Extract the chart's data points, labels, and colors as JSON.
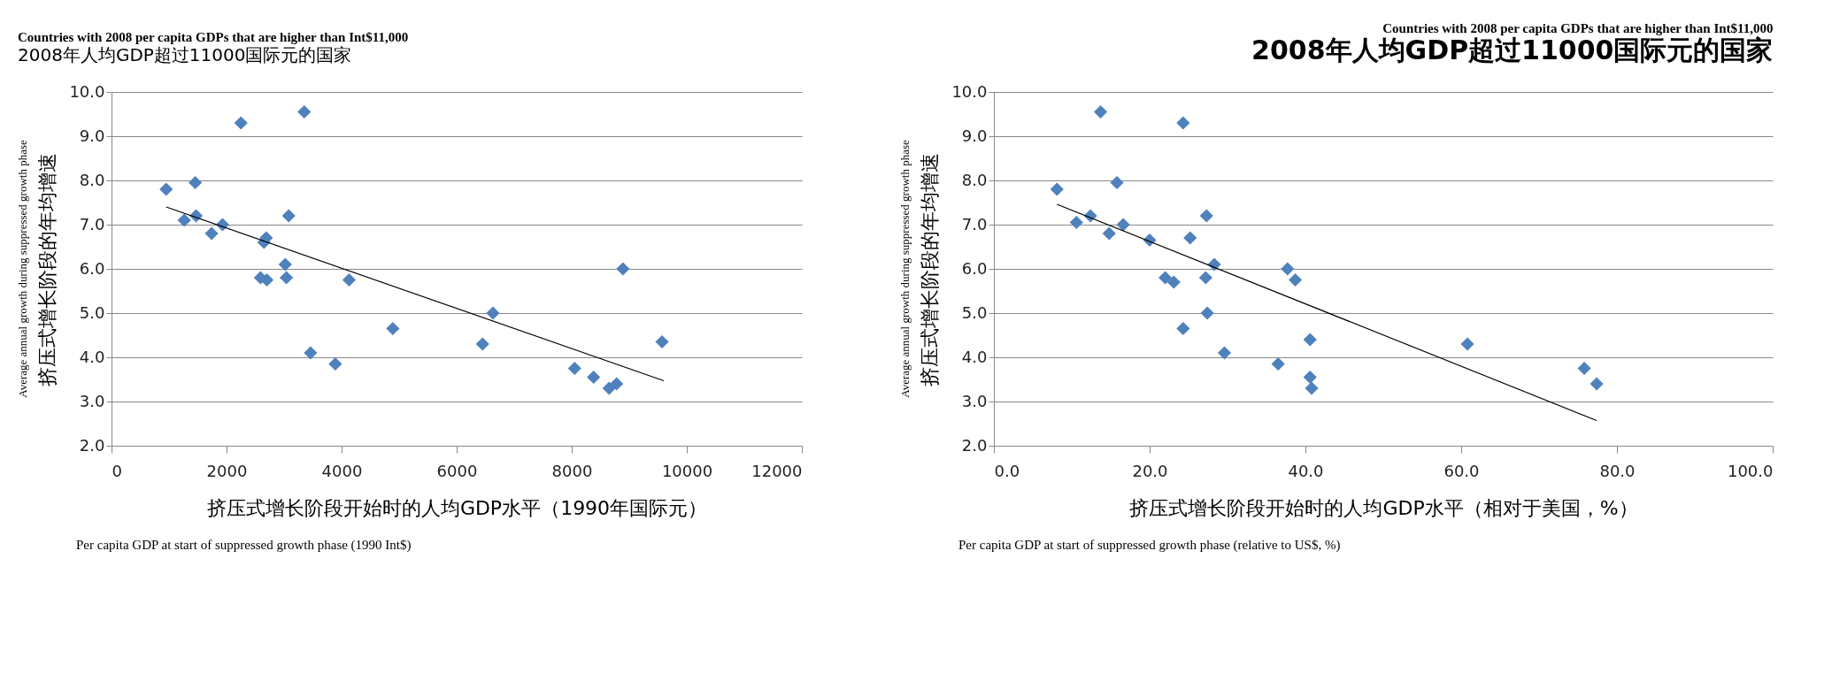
{
  "chart_data": [
    {
      "type": "scatter",
      "title": "Countries with 2008 per capita GDPs that are higher than Int$11,000",
      "subtitle": "2008年人均GDP超过11000国际元的国家",
      "xlabel": "挤压式增长阶段开始时的人均GDP水平（1990年国际元）",
      "ylabel": "挤压式增长阶段的年均增速",
      "annotations": [
        "Average annual growth during suppressed growth phase",
        "Per capita GDP at start of suppressed growth phase (1990 Int$)"
      ],
      "series": [
        {
          "type": "scatter",
          "color": "#4f81bd",
          "marker": "diamond",
          "x": [
            950,
            1455,
            1265,
            1470,
            1740,
            1930,
            2250,
            3350,
            2690,
            2650,
            2590,
            2700,
            3020,
            3040,
            3080,
            3460,
            3890,
            4130,
            4890,
            6450,
            6630,
            8050,
            8380,
            8650,
            8780,
            8890,
            9570
          ],
          "values": [
            7.8,
            7.95,
            7.1,
            7.2,
            6.8,
            7.0,
            9.3,
            9.55,
            6.7,
            6.6,
            5.8,
            5.75,
            6.1,
            5.8,
            7.2,
            4.1,
            3.85,
            5.75,
            4.65,
            4.3,
            5.0,
            3.75,
            3.55,
            3.3,
            3.4,
            6.0,
            4.35
          ]
        },
        {
          "type": "line",
          "color": "#000000",
          "x": [
            950,
            9600
          ],
          "values": [
            7.4,
            3.47
          ]
        }
      ],
      "xlim": [
        0,
        12000
      ],
      "xticks": [
        0,
        2000,
        4000,
        6000,
        8000,
        10000,
        12000
      ],
      "ylim": [
        2,
        10
      ],
      "yticks": [
        {
          "value": 2,
          "label": "2.0"
        },
        {
          "value": 3,
          "label": "3.0"
        },
        {
          "value": 4,
          "label": "4.0"
        },
        {
          "value": 5,
          "label": "5.0"
        },
        {
          "value": 6,
          "label": "6.0"
        },
        {
          "value": 7,
          "label": "7.0"
        },
        {
          "value": 8,
          "label": "8.0"
        },
        {
          "value": 9,
          "label": "9.0"
        },
        {
          "value": 10,
          "label": "10.0"
        }
      ],
      "grid": "y"
    },
    {
      "type": "scatter",
      "title": "Countries with 2008 per capita GDPs that are higher than Int$11,000",
      "subtitle": "2008年人均GDP超过11000国际元的国家",
      "xlabel": "挤压式增长阶段开始时的人均GDP水平（相对于美国，%）",
      "ylabel": "挤压式增长阶段的年均增速",
      "annotations": [
        "Average annual growth during suppressed growth phase",
        "Per capita GDP at start of suppressed growth phase (relative to US$, %)"
      ],
      "series": [
        {
          "type": "scatter",
          "color": "#4f81bd",
          "marker": "diamond",
          "x": [
            8.1,
            10.6,
            12.4,
            14.8,
            15.8,
            16.6,
            20.0,
            22.0,
            23.1,
            13.7,
            24.3,
            24.3,
            25.2,
            27.2,
            27.3,
            27.4,
            28.3,
            29.6,
            36.5,
            37.7,
            38.7,
            40.6,
            40.6,
            40.8,
            60.8,
            75.8,
            77.4
          ],
          "values": [
            7.8,
            7.05,
            7.2,
            6.8,
            7.95,
            7.0,
            6.65,
            5.8,
            5.7,
            9.55,
            9.3,
            4.65,
            6.7,
            5.8,
            7.2,
            5.0,
            6.1,
            4.1,
            3.85,
            6.0,
            5.75,
            4.4,
            3.55,
            3.3,
            4.3,
            3.75,
            3.4
          ]
        },
        {
          "type": "line",
          "color": "#000000",
          "x": [
            8.1,
            77.4
          ],
          "values": [
            7.46,
            2.57
          ]
        }
      ],
      "xlim": [
        0,
        100
      ],
      "xticks": [
        {
          "value": 0,
          "label": "0.0"
        },
        {
          "value": 20,
          "label": "20.0"
        },
        {
          "value": 40,
          "label": "40.0"
        },
        {
          "value": 60,
          "label": "60.0"
        },
        {
          "value": 80,
          "label": "80.0"
        },
        {
          "value": 100,
          "label": "100.0"
        }
      ],
      "ylim": [
        2,
        10
      ],
      "yticks": [
        {
          "value": 2,
          "label": "2.0"
        },
        {
          "value": 3,
          "label": "3.0"
        },
        {
          "value": 4,
          "label": "4.0"
        },
        {
          "value": 5,
          "label": "5.0"
        },
        {
          "value": 6,
          "label": "6.0"
        },
        {
          "value": 7,
          "label": "7.0"
        },
        {
          "value": 8,
          "label": "8.0"
        },
        {
          "value": 9,
          "label": "9.0"
        },
        {
          "value": 10,
          "label": "10.0"
        }
      ],
      "grid": "y"
    }
  ]
}
